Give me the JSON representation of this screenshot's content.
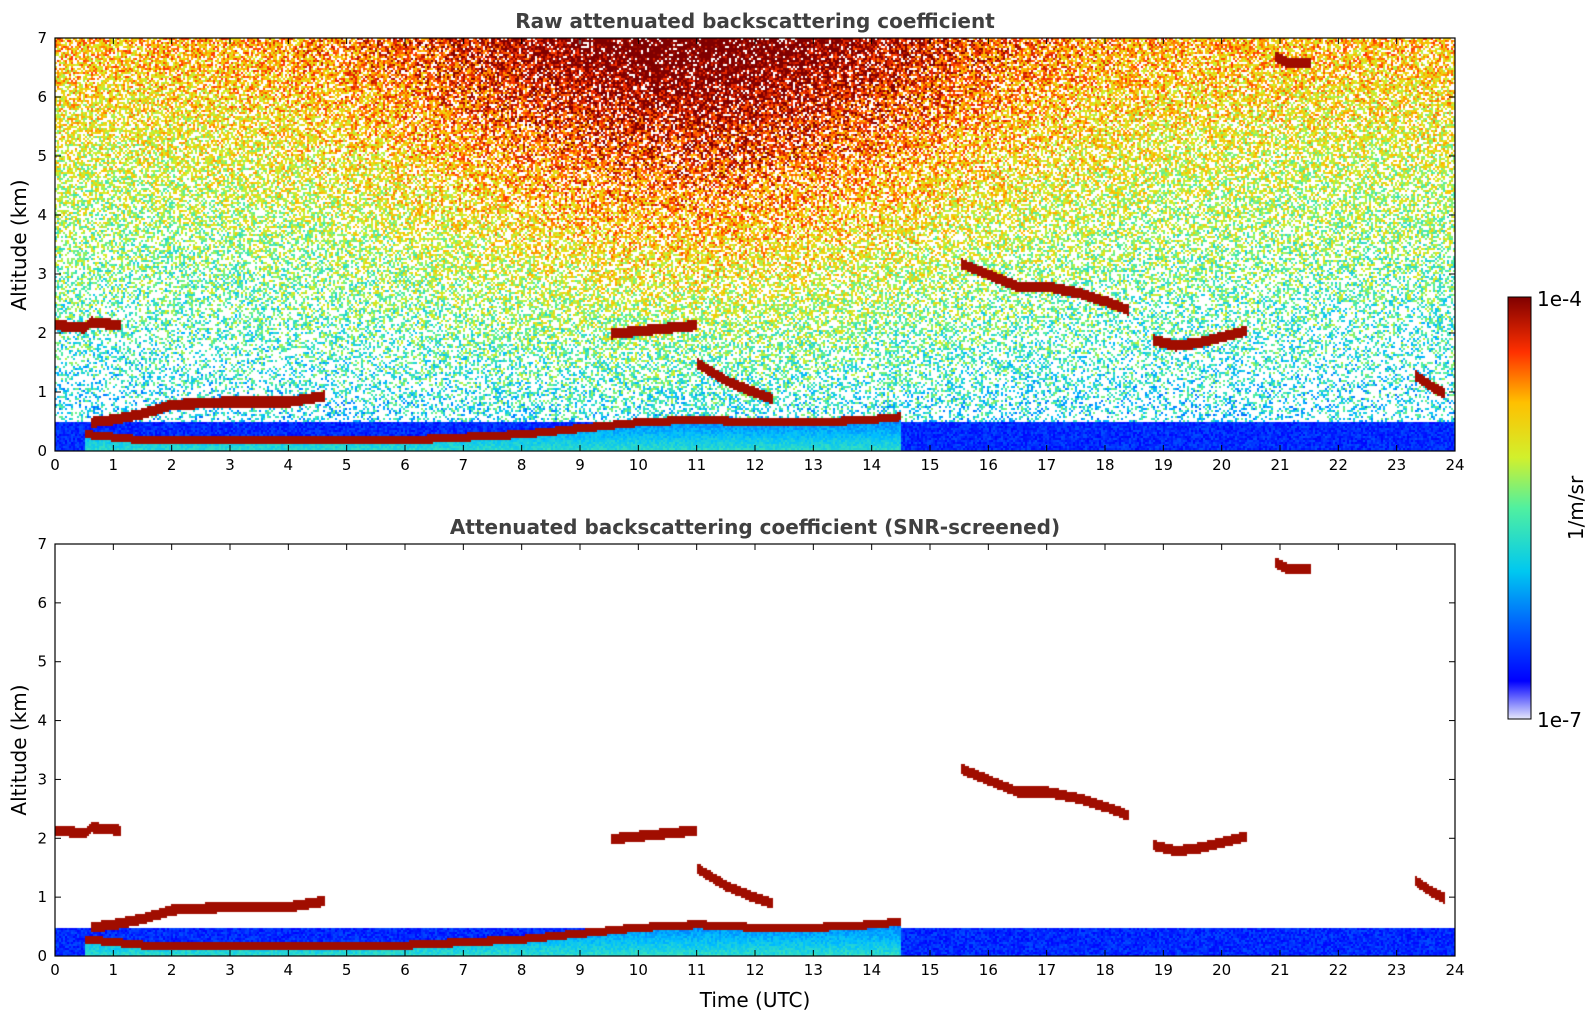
{
  "chart_data": [
    {
      "type": "heatmap",
      "title": "Raw attenuated backscattering coefficient",
      "xlabel": "",
      "ylabel": "Altitude (km)",
      "xlim": [
        0,
        24
      ],
      "ylim": [
        0,
        7
      ],
      "x_ticks": [
        "0",
        "1",
        "2",
        "3",
        "4",
        "5",
        "6",
        "7",
        "8",
        "9",
        "10",
        "11",
        "12",
        "13",
        "14",
        "15",
        "16",
        "17",
        "18",
        "19",
        "20",
        "21",
        "22",
        "23",
        "24"
      ],
      "y_ticks": [
        "0",
        "1",
        "2",
        "3",
        "4",
        "5",
        "6",
        "7"
      ],
      "screened": false,
      "features": [
        {
          "kind": "boundary-layer-top",
          "points": [
            [
              0.5,
              0.3
            ],
            [
              1.5,
              0.2
            ],
            [
              3,
              0.2
            ],
            [
              5,
              0.2
            ],
            [
              6,
              0.2
            ],
            [
              7,
              0.25
            ],
            [
              8,
              0.3
            ],
            [
              9,
              0.4
            ],
            [
              10,
              0.5
            ],
            [
              11,
              0.55
            ],
            [
              12,
              0.5
            ],
            [
              13,
              0.5
            ],
            [
              14,
              0.55
            ],
            [
              14.5,
              0.6
            ]
          ]
        },
        {
          "kind": "aerosol-layer",
          "points": [
            [
              0.6,
              0.5
            ],
            [
              1,
              0.55
            ],
            [
              1.5,
              0.65
            ],
            [
              2,
              0.8
            ],
            [
              3,
              0.85
            ],
            [
              4,
              0.85
            ],
            [
              4.6,
              0.95
            ]
          ]
        },
        {
          "kind": "cloud",
          "points": [
            [
              0,
              2.15
            ],
            [
              0.5,
              2.1
            ],
            [
              0.6,
              2.2
            ],
            [
              1.1,
              2.15
            ]
          ]
        },
        {
          "kind": "cloud",
          "points": [
            [
              9.5,
              2.0
            ],
            [
              10.5,
              2.1
            ],
            [
              11,
              2.15
            ]
          ]
        },
        {
          "kind": "cloud",
          "points": [
            [
              11,
              1.5
            ],
            [
              11.5,
              1.2
            ],
            [
              12,
              1.0
            ],
            [
              12.3,
              0.9
            ]
          ]
        },
        {
          "kind": "cloud",
          "points": [
            [
              15.5,
              3.2
            ],
            [
              16,
              3.0
            ],
            [
              16.5,
              2.8
            ],
            [
              17,
              2.8
            ],
            [
              17.5,
              2.7
            ],
            [
              18,
              2.55
            ],
            [
              18.4,
              2.4
            ]
          ]
        },
        {
          "kind": "cloud",
          "points": [
            [
              18.8,
              1.9
            ],
            [
              19.2,
              1.8
            ],
            [
              19.6,
              1.85
            ],
            [
              20,
              1.95
            ],
            [
              20.4,
              2.05
            ]
          ]
        },
        {
          "kind": "cloud",
          "points": [
            [
              23.3,
              1.3
            ],
            [
              23.6,
              1.1
            ],
            [
              23.8,
              1.0
            ]
          ]
        },
        {
          "kind": "cirrus",
          "points": [
            [
              20.9,
              6.7
            ],
            [
              21.1,
              6.6
            ],
            [
              21.5,
              6.6
            ]
          ]
        }
      ]
    },
    {
      "type": "heatmap",
      "title": "Attenuated backscattering coefficient (SNR-screened)",
      "xlabel": "Time (UTC)",
      "ylabel": "Altitude (km)",
      "xlim": [
        0,
        24
      ],
      "ylim": [
        0,
        7
      ],
      "x_ticks": [
        "0",
        "1",
        "2",
        "3",
        "4",
        "5",
        "6",
        "7",
        "8",
        "9",
        "10",
        "11",
        "12",
        "13",
        "14",
        "15",
        "16",
        "17",
        "18",
        "19",
        "20",
        "21",
        "22",
        "23",
        "24"
      ],
      "y_ticks": [
        "0",
        "1",
        "2",
        "3",
        "4",
        "5",
        "6",
        "7"
      ],
      "screened": true
    }
  ],
  "colorbar": {
    "label": "1/m/sr",
    "min_label": "1e-7",
    "max_label": "1e-4",
    "scale": "log",
    "colormap": "jet"
  }
}
